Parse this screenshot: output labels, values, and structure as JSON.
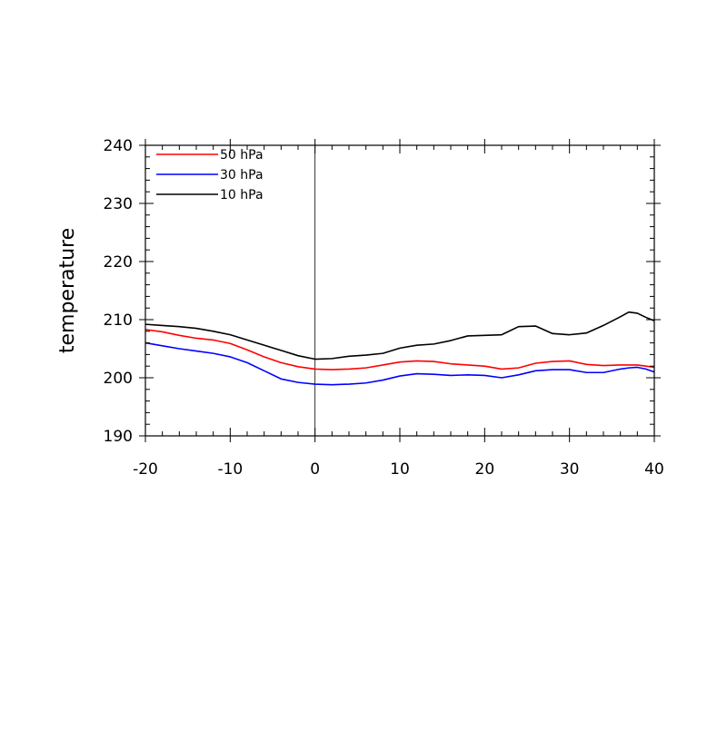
{
  "chart_data": {
    "type": "line",
    "title": "",
    "xlabel": "",
    "ylabel": "temperature",
    "xlim": [
      -20,
      40
    ],
    "ylim": [
      190,
      240
    ],
    "x_ticks": [
      "-20",
      "-10",
      "0",
      "10",
      "20",
      "30",
      "40"
    ],
    "y_ticks": [
      "190",
      "200",
      "210",
      "220",
      "230",
      "240"
    ],
    "reference_line_x": 0,
    "grid": false,
    "legend_position": "top-left",
    "x": [
      -20,
      -18,
      -16,
      -14,
      -12,
      -10,
      -8,
      -6,
      -4,
      -2,
      0,
      2,
      4,
      6,
      8,
      10,
      12,
      14,
      16,
      18,
      20,
      22,
      24,
      26,
      28,
      30,
      32,
      34,
      36,
      37,
      38,
      39,
      40
    ],
    "series": [
      {
        "name": "50 hPa",
        "color": "#ff0000",
        "values": [
          208.3,
          207.9,
          207.3,
          206.8,
          206.5,
          205.9,
          204.8,
          203.6,
          202.6,
          201.9,
          201.5,
          201.4,
          201.5,
          201.7,
          202.2,
          202.7,
          202.9,
          202.8,
          202.4,
          202.2,
          202.0,
          201.5,
          201.7,
          202.5,
          202.8,
          202.9,
          202.3,
          202.1,
          202.2,
          202.2,
          202.2,
          202.0,
          201.8
        ]
      },
      {
        "name": "30 hPa",
        "color": "#0000ff",
        "values": [
          206.0,
          205.5,
          205.0,
          204.6,
          204.2,
          203.6,
          202.6,
          201.2,
          199.8,
          199.2,
          198.9,
          198.8,
          198.9,
          199.1,
          199.6,
          200.3,
          200.7,
          200.6,
          200.4,
          200.5,
          200.4,
          200.0,
          200.5,
          201.2,
          201.4,
          201.4,
          200.9,
          200.9,
          201.5,
          201.7,
          201.8,
          201.5,
          201.0
        ]
      },
      {
        "name": "10 hPa",
        "color": "#000000",
        "values": [
          209.2,
          209.0,
          208.8,
          208.5,
          208.0,
          207.4,
          206.5,
          205.6,
          204.7,
          203.8,
          203.2,
          203.3,
          203.7,
          203.9,
          204.2,
          205.1,
          205.6,
          205.8,
          206.4,
          207.2,
          207.3,
          207.4,
          208.8,
          208.9,
          207.6,
          207.4,
          207.7,
          209.0,
          210.5,
          211.3,
          211.1,
          210.4,
          209.8
        ]
      }
    ]
  }
}
